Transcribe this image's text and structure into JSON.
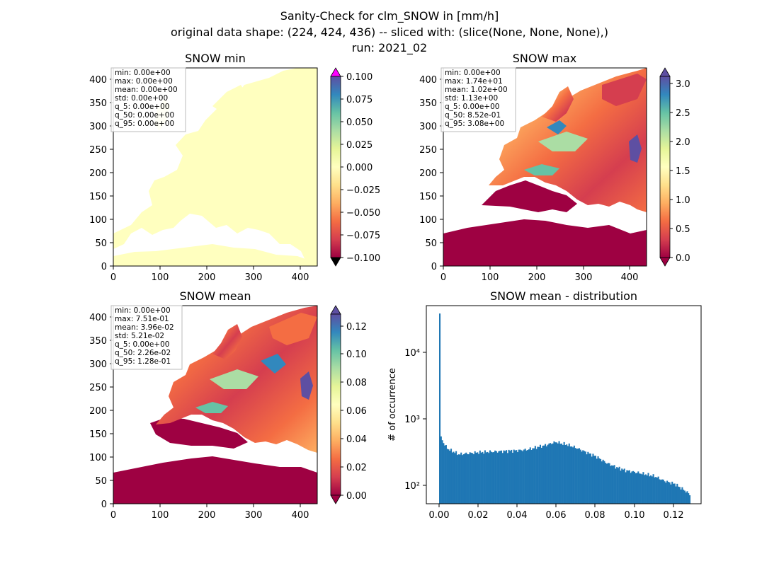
{
  "title": {
    "line1": "Sanity-Check for clm_SNOW in [mm/h]",
    "line2": "original data shape: (224, 424, 436) -- sliced with: (slice(None, None, None),)",
    "line3": "run: 2021_02"
  },
  "colors": {
    "ocean_low": "#9e0142",
    "max_over": "#ff00ff",
    "min_under": "#000000",
    "hist_bar": "#1f77b4"
  },
  "chart_data": [
    {
      "type": "heatmap",
      "title": "SNOW min",
      "x_ticks": [
        "0",
        "100",
        "200",
        "300",
        "400"
      ],
      "y_ticks": [
        "0",
        "50",
        "100",
        "150",
        "200",
        "250",
        "300",
        "350",
        "400"
      ],
      "xlim": [
        0,
        436
      ],
      "ylim": [
        0,
        424
      ],
      "colormap": "Spectral",
      "colorbar_ticks": [
        "−0.100",
        "−0.075",
        "−0.050",
        "−0.025",
        "0.000",
        "0.025",
        "0.050",
        "0.075",
        "0.100"
      ],
      "colorbar_range": [
        -0.1,
        0.1
      ],
      "stats": [
        "min: 0.00e+00",
        "max: 0.00e+00",
        "mean: 0.00e+00",
        "std: 0.00e+00",
        "q_5: 0.00e+00",
        "q_50: 0.00e+00",
        "q_95: 0.00e+00"
      ]
    },
    {
      "type": "heatmap",
      "title": "SNOW max",
      "x_ticks": [
        "0",
        "100",
        "200",
        "300",
        "400"
      ],
      "y_ticks": [
        "0",
        "50",
        "100",
        "150",
        "200",
        "250",
        "300",
        "350",
        "400"
      ],
      "xlim": [
        0,
        436
      ],
      "ylim": [
        0,
        424
      ],
      "colormap": "Spectral",
      "colorbar_ticks": [
        "0.0",
        "0.5",
        "1.0",
        "1.5",
        "2.0",
        "2.5",
        "3.0"
      ],
      "colorbar_range": [
        0,
        3.2
      ],
      "stats": [
        "min: 0.00e+00",
        "max: 1.74e+01",
        "mean: 1.02e+00",
        "std: 1.13e+00",
        "q_5: 0.00e+00",
        "q_50: 8.52e-01",
        "q_95: 3.08e+00"
      ]
    },
    {
      "type": "heatmap",
      "title": "SNOW mean",
      "x_ticks": [
        "0",
        "100",
        "200",
        "300",
        "400"
      ],
      "y_ticks": [
        "0",
        "50",
        "100",
        "150",
        "200",
        "250",
        "300",
        "350",
        "400"
      ],
      "xlim": [
        0,
        436
      ],
      "ylim": [
        0,
        424
      ],
      "colormap": "Spectral",
      "colorbar_ticks": [
        "0.00",
        "0.02",
        "0.04",
        "0.06",
        "0.08",
        "0.10",
        "0.12"
      ],
      "colorbar_range": [
        0,
        0.13
      ],
      "stats": [
        "min: 0.00e+00",
        "max: 7.51e-01",
        "mean: 3.96e-02",
        "std: 5.21e-02",
        "q_5: 0.00e+00",
        "q_50: 2.26e-02",
        "q_95: 1.28e-01"
      ]
    },
    {
      "type": "bar",
      "title": "SNOW mean - distribution",
      "ylabel": "# of occurrence",
      "xlabel": "",
      "y_scale": "log",
      "xlim": [
        -0.0065,
        0.1335
      ],
      "ylim": [
        50,
        50000
      ],
      "x_ticks": [
        "0.00",
        "0.02",
        "0.04",
        "0.06",
        "0.08",
        "0.10",
        "0.12"
      ],
      "y_tick_labels": [
        "10²",
        "10³",
        "10⁴"
      ],
      "bin_width": 0.00064,
      "x_start": 0.0,
      "x_end": 0.128,
      "values_profile": [
        [
          0.0,
          38000
        ],
        [
          0.0007,
          520
        ],
        [
          0.0015,
          470
        ],
        [
          0.003,
          380
        ],
        [
          0.005,
          330
        ],
        [
          0.008,
          300
        ],
        [
          0.01,
          280
        ],
        [
          0.015,
          290
        ],
        [
          0.02,
          300
        ],
        [
          0.025,
          305
        ],
        [
          0.03,
          310
        ],
        [
          0.035,
          315
        ],
        [
          0.04,
          320
        ],
        [
          0.045,
          330
        ],
        [
          0.05,
          360
        ],
        [
          0.055,
          390
        ],
        [
          0.058,
          420
        ],
        [
          0.06,
          430
        ],
        [
          0.062,
          410
        ],
        [
          0.065,
          395
        ],
        [
          0.07,
          350
        ],
        [
          0.075,
          300
        ],
        [
          0.08,
          260
        ],
        [
          0.085,
          210
        ],
        [
          0.09,
          180
        ],
        [
          0.095,
          160
        ],
        [
          0.1,
          150
        ],
        [
          0.105,
          140
        ],
        [
          0.11,
          130
        ],
        [
          0.115,
          110
        ],
        [
          0.12,
          100
        ],
        [
          0.125,
          80
        ],
        [
          0.128,
          68
        ]
      ]
    }
  ]
}
